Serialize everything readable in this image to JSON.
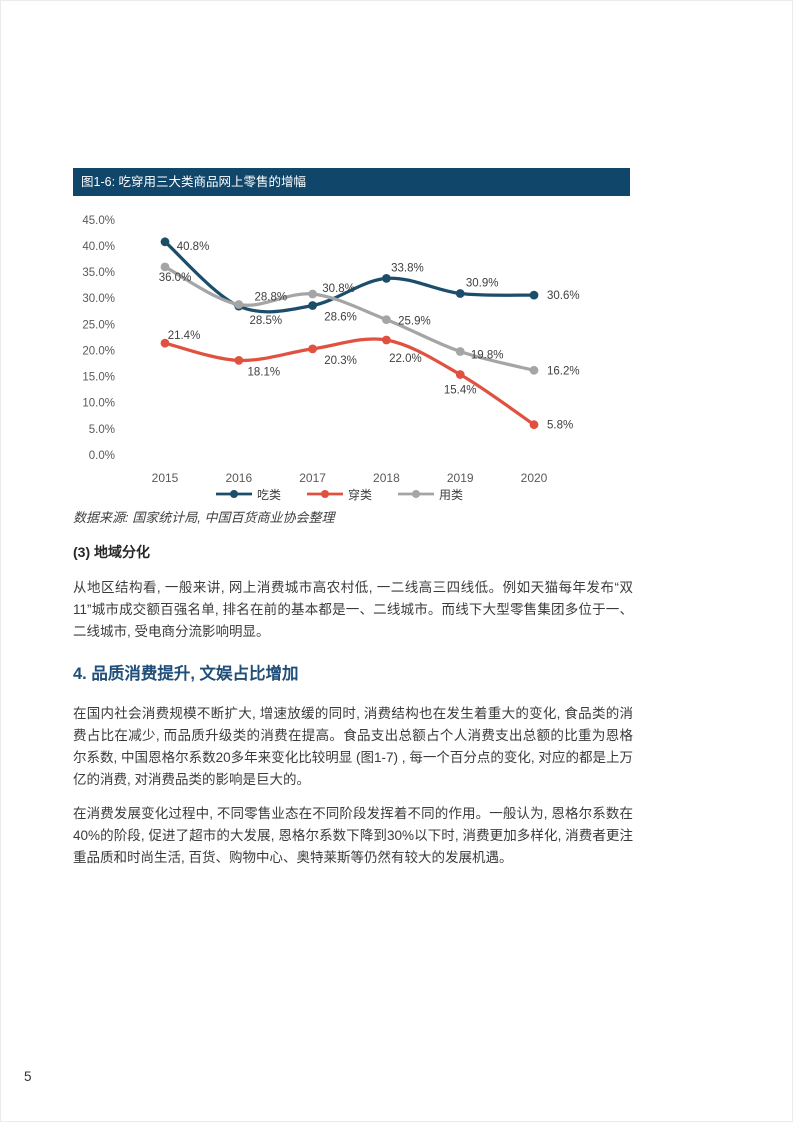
{
  "page": {
    "number": "5"
  },
  "colors": {
    "title_bar_bg": "#11466B",
    "heading_accent": "#1F4E79",
    "series_eat": "#1C4E6B",
    "series_wear": "#E05140",
    "series_use": "#A5A5A5",
    "axis_text": "#595959",
    "label_text": "#404040"
  },
  "figure": {
    "source": "数据来源: 国家统计局, 中国百货商业协会整理"
  },
  "chart_data": {
    "type": "line",
    "title": "图1-6: 吃穿用三大类商品网上零售的增幅",
    "categories": [
      "2015",
      "2016",
      "2017",
      "2018",
      "2019",
      "2020"
    ],
    "series": [
      {
        "name": "吃类",
        "color": "#1C4E6B",
        "values": [
          40.8,
          28.5,
          28.6,
          33.8,
          30.9,
          30.6
        ]
      },
      {
        "name": "穿类",
        "color": "#E05140",
        "values": [
          21.4,
          18.1,
          20.3,
          22.0,
          15.4,
          5.8
        ]
      },
      {
        "name": "用类",
        "color": "#A5A5A5",
        "values": [
          36.0,
          28.8,
          30.8,
          25.9,
          19.8,
          16.2
        ]
      }
    ],
    "y_ticks": [
      "45.0%",
      "40.0%",
      "35.0%",
      "30.0%",
      "25.0%",
      "20.0%",
      "15.0%",
      "10.0%",
      "5.0%",
      "0.0%"
    ],
    "ylim": [
      0,
      45
    ],
    "grid": false,
    "axis_lines": false,
    "data_labels": true,
    "data_label_format": "{value}%",
    "legend_position": "bottom",
    "layout": {
      "smooth": true,
      "label_offsets": {
        "吃类": [
          [
            28,
            8,
            "middle"
          ],
          [
            27,
            18,
            "middle"
          ],
          [
            28,
            15,
            "middle"
          ],
          [
            21,
            -7,
            "middle"
          ],
          [
            22,
            -7,
            "middle"
          ],
          [
            13,
            4,
            "start"
          ]
        ],
        "穿类": [
          [
            19,
            -4,
            "middle"
          ],
          [
            25,
            15,
            "middle"
          ],
          [
            28,
            15,
            "middle"
          ],
          [
            19,
            22,
            "middle"
          ],
          [
            0,
            19,
            "middle"
          ],
          [
            13,
            4,
            "start"
          ]
        ],
        "用类": [
          [
            10,
            14,
            "middle"
          ],
          [
            32,
            -4,
            "middle"
          ],
          [
            26,
            -2,
            "middle"
          ],
          [
            28,
            5,
            "middle"
          ],
          [
            27,
            7,
            "middle"
          ],
          [
            13,
            4,
            "start"
          ]
        ]
      }
    }
  },
  "sections": {
    "h3": "(3) 地域分化",
    "p1": "从地区结构看, 一般来讲, 网上消费城市高农村低, 一二线高三四线低。例如天猫每年发布“双11”城市成交额百强名单, 排名在前的基本都是一、二线城市。而线下大型零售集团多位于一、二线城市, 受电商分流影响明显。",
    "h2": "4. 品质消费提升, 文娱占比增加",
    "p2": "在国内社会消费规模不断扩大, 增速放缓的同时, 消费结构也在发生着重大的变化, 食品类的消费占比在减少, 而品质升级类的消费在提高。食品支出总额占个人消费支出总额的比重为恩格尔系数, 中国恩格尔系数20多年来变化比较明显 (图1-7) , 每一个百分点的变化, 对应的都是上万亿的消费, 对消费品类的影响是巨大的。",
    "p3": "在消费发展变化过程中, 不同零售业态在不同阶段发挥着不同的作用。一般认为, 恩格尔系数在40%的阶段, 促进了超市的大发展, 恩格尔系数下降到30%以下时, 消费更加多样化, 消费者更注重品质和时尚生活, 百货、购物中心、奥特莱斯等仍然有较大的发展机遇。"
  }
}
